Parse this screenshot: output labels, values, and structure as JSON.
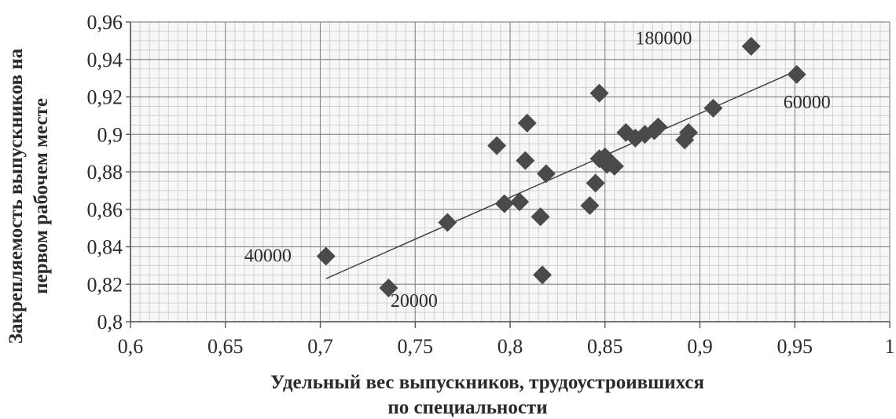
{
  "chart_data": {
    "type": "scatter",
    "title": "",
    "xlabel": [
      "Удельный вес выпускников, трудоустроившихся",
      "по специальности"
    ],
    "ylabel": [
      "Закрепляемость выпускников на",
      "первом рабочем месте"
    ],
    "xlim": [
      0.6,
      1.0
    ],
    "ylim": [
      0.8,
      0.96
    ],
    "x_ticks": [
      "0,6",
      "0,65",
      "0,7",
      "0,75",
      "0,8",
      "0,85",
      "0,9",
      "0,95",
      "1"
    ],
    "y_ticks": [
      "0,8",
      "0,82",
      "0,84",
      "0,86",
      "0,88",
      "0,9",
      "0,92",
      "0,94",
      "0,96"
    ],
    "grid": true,
    "marker": "diamond",
    "colors": {
      "marker": "#4a4a4a",
      "grid_major": "#8c8c8c",
      "grid_minor": "#cfcfcf",
      "plot_bg": "#f7f7f7",
      "trend": "#3a3a3a"
    },
    "points": [
      {
        "x": 0.703,
        "y": 0.835
      },
      {
        "x": 0.736,
        "y": 0.818
      },
      {
        "x": 0.767,
        "y": 0.853
      },
      {
        "x": 0.793,
        "y": 0.894
      },
      {
        "x": 0.797,
        "y": 0.863
      },
      {
        "x": 0.805,
        "y": 0.864
      },
      {
        "x": 0.808,
        "y": 0.886
      },
      {
        "x": 0.809,
        "y": 0.906
      },
      {
        "x": 0.816,
        "y": 0.856
      },
      {
        "x": 0.817,
        "y": 0.825
      },
      {
        "x": 0.819,
        "y": 0.879
      },
      {
        "x": 0.842,
        "y": 0.862
      },
      {
        "x": 0.845,
        "y": 0.874
      },
      {
        "x": 0.847,
        "y": 0.922
      },
      {
        "x": 0.847,
        "y": 0.887
      },
      {
        "x": 0.85,
        "y": 0.888
      },
      {
        "x": 0.851,
        "y": 0.884
      },
      {
        "x": 0.855,
        "y": 0.883
      },
      {
        "x": 0.861,
        "y": 0.901
      },
      {
        "x": 0.866,
        "y": 0.898
      },
      {
        "x": 0.871,
        "y": 0.9
      },
      {
        "x": 0.876,
        "y": 0.902
      },
      {
        "x": 0.878,
        "y": 0.904
      },
      {
        "x": 0.892,
        "y": 0.897
      },
      {
        "x": 0.894,
        "y": 0.901
      },
      {
        "x": 0.907,
        "y": 0.914
      },
      {
        "x": 0.927,
        "y": 0.947
      },
      {
        "x": 0.951,
        "y": 0.932
      }
    ],
    "trendline": {
      "x": [
        0.703,
        0.951
      ],
      "y": [
        0.823,
        0.934
      ]
    },
    "annotations": [
      {
        "text": "40000",
        "x": 0.66,
        "y": 0.832
      },
      {
        "text": "20000",
        "x": 0.737,
        "y": 0.808
      },
      {
        "text": "180000",
        "x": 0.866,
        "y": 0.948
      },
      {
        "text": "60000",
        "x": 0.944,
        "y": 0.914
      }
    ]
  }
}
